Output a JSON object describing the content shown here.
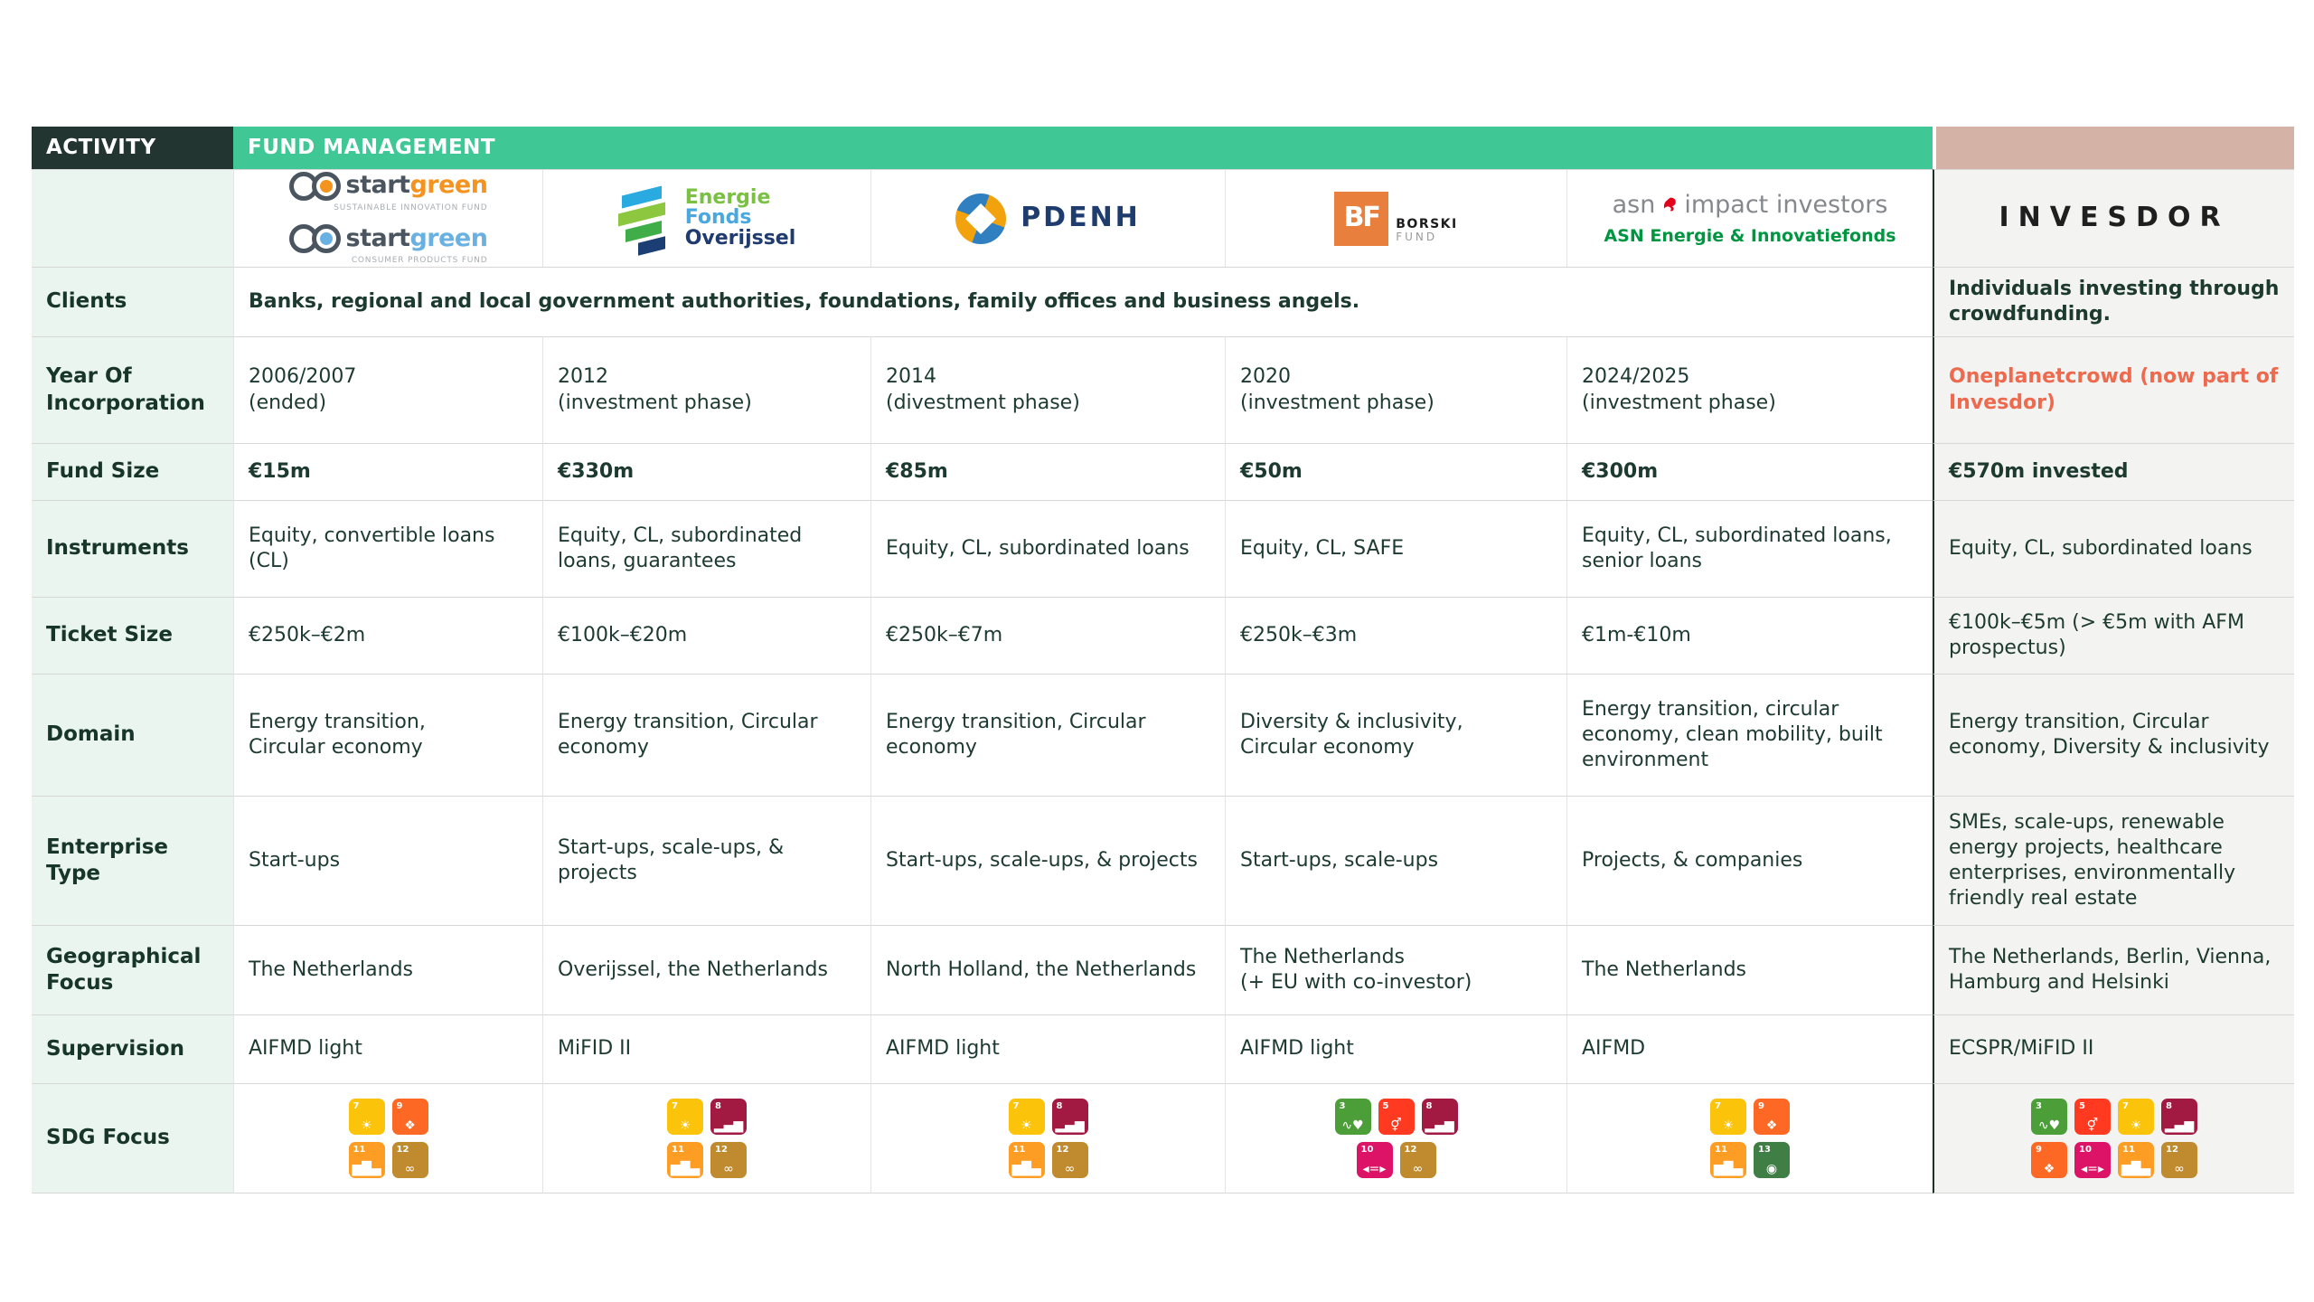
{
  "header": {
    "activity": "ACTIVITY",
    "fund_management": "FUND MANAGEMENT"
  },
  "row_labels": {
    "clients": "Clients",
    "year": "Year Of Incorporation",
    "fund_size": "Fund Size",
    "instruments": "Instruments",
    "ticket_size": "Ticket Size",
    "domain": "Domain",
    "enterprise_type": "Enterprise Type",
    "geographical_focus": "Geographical Focus",
    "supervision": "Supervision",
    "sdg_focus": "SDG Focus"
  },
  "shared": {
    "clients": "Banks, regional and local government authorities, foundations, family offices and business angels."
  },
  "logos": {
    "startgreen": {
      "fund1": {
        "start": "start",
        "green": "green",
        "caption": "SUSTAINABLE INNOVATION FUND"
      },
      "fund2": {
        "start": "start",
        "green": "green",
        "caption": "CONSUMER PRODUCTS FUND"
      }
    },
    "energiefonds": {
      "line1": "Energie",
      "line2": "Fonds",
      "line3": "Overijssel"
    },
    "pdenh": {
      "wordmark": "PDENH"
    },
    "borski": {
      "monogram": "BF",
      "name": "BORSKI",
      "sub": "FUND"
    },
    "asn": {
      "brand": "asn",
      "suffix": "impact investors",
      "fund": "ASN Energie & Innovatiefonds"
    },
    "invesdor": {
      "wordmark": "INVESDOR"
    }
  },
  "companies": [
    {
      "name": "StartGreen Capital",
      "year": "2006/2007\n(ended)",
      "fund_size": "€15m",
      "instruments": "Equity, convertible loans (CL)",
      "ticket_size": "€250k–€2m",
      "domain": "Energy transition,\nCircular economy",
      "enterprise_type": "Start-ups",
      "geographical_focus": "The Netherlands",
      "supervision": "AIFMD light",
      "sdg_rows": [
        [
          7,
          9
        ],
        [
          11,
          12
        ]
      ]
    },
    {
      "name": "Energie Fonds Overijssel",
      "year": "2012\n(investment phase)",
      "fund_size": "€330m",
      "instruments": "Equity, CL, subordinated loans, guarantees",
      "ticket_size": "€100k–€20m",
      "domain": "Energy transition, Circular economy",
      "enterprise_type": "Start-ups, scale-ups, & projects",
      "geographical_focus": "Overijssel, the Netherlands",
      "supervision": "MiFID II",
      "sdg_rows": [
        [
          7,
          8
        ],
        [
          11,
          12
        ]
      ]
    },
    {
      "name": "PDENH",
      "year": "2014\n(divestment phase)",
      "fund_size": "€85m",
      "instruments": "Equity, CL, subordinated loans",
      "ticket_size": "€250k–€7m",
      "domain": "Energy transition, Circular economy",
      "enterprise_type": "Start-ups, scale-ups, & projects",
      "geographical_focus": "North Holland, the Netherlands",
      "supervision": "AIFMD light",
      "sdg_rows": [
        [
          7,
          8
        ],
        [
          11,
          12
        ]
      ]
    },
    {
      "name": "Borski Fund",
      "year": "2020\n(investment phase)",
      "fund_size": "€50m",
      "instruments": "Equity, CL, SAFE",
      "ticket_size": "€250k–€3m",
      "domain": "Diversity & inclusivity,\nCircular economy",
      "enterprise_type": "Start-ups, scale-ups",
      "geographical_focus": "The Netherlands\n(+ EU with co-investor)",
      "supervision": "AIFMD light",
      "sdg_rows": [
        [
          3,
          5,
          8
        ],
        [
          10,
          12
        ]
      ]
    },
    {
      "name": "ASN Impact Investors",
      "year": "2024/2025\n(investment phase)",
      "fund_size": "€300m",
      "instruments": "Equity, CL, subordinated loans, senior loans",
      "ticket_size": "€1m-€10m",
      "domain": "Energy transition, circular economy, clean mobility, built environment",
      "enterprise_type": "Projects, & companies",
      "geographical_focus": "The Netherlands",
      "supervision": "AIFMD",
      "sdg_rows": [
        [
          7,
          9
        ],
        [
          11,
          13
        ]
      ]
    },
    {
      "name": "Invesdor",
      "clients": "Individuals investing through crowdfunding.",
      "year": "Oneplanetcrowd (now part of Invesdor)",
      "fund_size": "€570m invested",
      "instruments": "Equity, CL, subordinated loans",
      "ticket_size": "€100k–€5m (> €5m with AFM prospectus)",
      "domain": "Energy transition, Circular economy, Diversity & inclusivity",
      "enterprise_type": "SMEs, scale-ups, renewable energy projects, healthcare enterprises, environmentally friendly real estate",
      "geographical_focus": "The Netherlands, Berlin, Vienna, Hamburg and Helsinki",
      "supervision": "ECSPR/MiFID II",
      "sdg_rows": [
        [
          3,
          5,
          7,
          8
        ],
        [
          9,
          10,
          11,
          12
        ]
      ]
    }
  ],
  "sdg": {
    "colors": {
      "3": "#4C9F38",
      "5": "#FF3A21",
      "7": "#FCC30B",
      "8": "#A21942",
      "9": "#FD6925",
      "10": "#DD1367",
      "11": "#FD9D24",
      "12": "#BF8B2E",
      "13": "#3F7E44"
    },
    "glyphs": {
      "3": "∿♥",
      "5": "⚥",
      "7": "☀",
      "8": "▂▄▆",
      "9": "❖",
      "10": "◂=▸",
      "11": "▆█▄",
      "12": "∞",
      "13": "◉"
    }
  },
  "accent_colors": {
    "group_bar_green": "#3fc795",
    "activity_dark": "#233530",
    "label_mint": "#e9f5ee",
    "invesdor_rose": "#d4b2a5",
    "invesdor_gray": "#f3f3f2",
    "highlight_orange": "#ee6a4f",
    "text_dark_green": "#1d3a30"
  }
}
